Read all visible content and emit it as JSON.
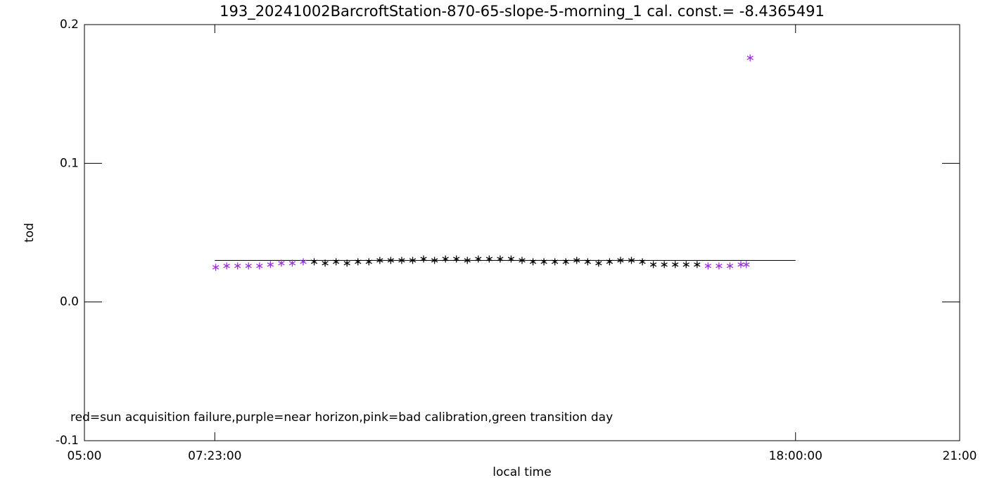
{
  "chart_data": {
    "type": "scatter",
    "title": "193_20241002BarcroftStation-870-65-slope-5-morning_1 cal. const.= -8.4365491",
    "xlabel": "local time",
    "ylabel": "tod",
    "annotation": "red=sun acquisition failure,purple=near horizon,pink=bad calibration,green transition day",
    "xlim": [
      5,
      21
    ],
    "xticks": [
      {
        "value": 5,
        "label": "05:00"
      },
      {
        "value": 7.383,
        "label": "07:23:00"
      },
      {
        "value": 18,
        "label": "18:00:00"
      },
      {
        "value": 21,
        "label": "21:00"
      }
    ],
    "ylim": [
      -0.1,
      0.2
    ],
    "yticks": [
      -0.1,
      {
        "value": 0,
        "label": "0.0"
      },
      0.1,
      0.2
    ],
    "fit_line": {
      "x": [
        7.383,
        18
      ],
      "value": 0.03,
      "color": "#000000"
    },
    "series": [
      {
        "color": "#000000",
        "x": [
          9.2,
          9.4,
          9.6,
          9.8,
          10.0,
          10.2,
          10.4,
          10.6,
          10.8,
          11.0,
          11.2,
          11.4,
          11.6,
          11.8,
          12.0,
          12.2,
          12.4,
          12.6,
          12.8,
          13.0,
          13.2,
          13.4,
          13.6,
          13.8,
          14.0,
          14.2,
          14.4,
          14.6,
          14.8,
          15.0,
          15.2,
          15.4,
          15.6,
          15.8,
          16.0,
          16.2
        ],
        "values": [
          0.029,
          0.028,
          0.029,
          0.028,
          0.029,
          0.029,
          0.03,
          0.03,
          0.03,
          0.03,
          0.031,
          0.03,
          0.031,
          0.031,
          0.03,
          0.031,
          0.031,
          0.031,
          0.031,
          0.03,
          0.029,
          0.029,
          0.029,
          0.029,
          0.03,
          0.029,
          0.028,
          0.029,
          0.03,
          0.03,
          0.029,
          0.027,
          0.027,
          0.027,
          0.027,
          0.027
        ]
      },
      {
        "color": "#9b30e0",
        "x": [
          7.4,
          7.6,
          7.8,
          8.0,
          8.2,
          8.4,
          8.6,
          8.8,
          9.0,
          16.4,
          16.6,
          16.8,
          17.0,
          17.1,
          17.17
        ],
        "values": [
          0.025,
          0.026,
          0.026,
          0.026,
          0.026,
          0.027,
          0.028,
          0.028,
          0.029,
          0.026,
          0.026,
          0.026,
          0.027,
          0.027,
          0.176
        ]
      }
    ]
  }
}
